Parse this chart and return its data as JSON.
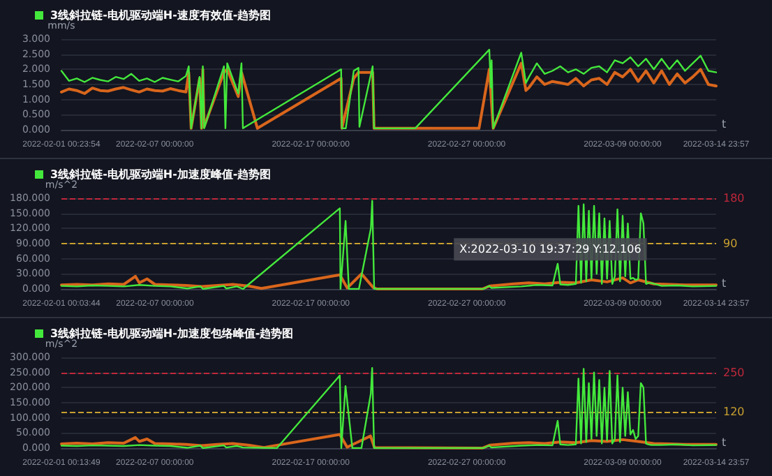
{
  "chart_data": [
    {
      "type": "line",
      "xlabel": "t",
      "ylabel": "mm/s",
      "xlim": [
        "2022-02-01T00:23:54",
        "2022-03-14T23:57"
      ],
      "xticks": [
        {
          "value": "2022-02-01T00:23:54",
          "label": "2022-02-01 00:23:54"
        },
        {
          "value": "2022-02-07T00:00:00",
          "label": "2022-02-07 00:00:00"
        },
        {
          "value": "2022-02-17T00:00:00",
          "label": "2022-02-17 00:00:00"
        },
        {
          "value": "2022-02-27T00:00:00",
          "label": "2022-02-27 00:00:00"
        },
        {
          "value": "2022-03-09T00:00:00",
          "label": "2022-03-09 00:00:00"
        },
        {
          "value": "2022-03-14T23:57",
          "label": "2022-03-14 23:57"
        }
      ],
      "ylim": [
        0,
        3
      ],
      "yticks": [
        {
          "value": 0,
          "label": "0.000"
        },
        {
          "value": 0.5,
          "label": "0.500"
        },
        {
          "value": 1,
          "label": "1.000"
        },
        {
          "value": 1.5,
          "label": "1.500"
        },
        {
          "value": 2,
          "label": "2.000"
        },
        {
          "value": 2.5,
          "label": "2.500"
        },
        {
          "value": 3,
          "label": "3.000"
        }
      ],
      "grid": "y",
      "legend": "top left",
      "marker": "none",
      "line_style": "solid",
      "series": [
        {
          "name": "3线斜拉链-电机驱动端H-速度有效值-趋势图",
          "color": "#44e83c",
          "x": [
            "2022-02-01T00:23:54",
            "2022-02-01T12:00",
            "2022-02-02T00:00",
            "2022-02-02T12:00",
            "2022-02-03T00:00",
            "2022-02-03T12:00",
            "2022-02-04T00:00",
            "2022-02-04T12:00",
            "2022-02-05T00:00",
            "2022-02-05T12:00",
            "2022-02-06T00:00",
            "2022-02-06T12:00",
            "2022-02-07T00:00",
            "2022-02-07T12:00",
            "2022-02-08T00:00",
            "2022-02-08T12:00",
            "2022-02-09T00:00",
            "2022-02-09T04:20",
            "2022-02-09T08:00",
            "2022-02-09T21:00",
            "2022-02-10T00:00",
            "2022-02-10T02:00",
            "2022-02-10T04:00",
            "2022-02-11T10:30",
            "2022-02-11T12:45",
            "2022-02-11T15:30",
            "2022-02-12T08:30",
            "2022-02-12T13:30",
            "2022-02-12T15:40",
            "2022-02-18T22:50",
            "2022-02-19T00:00",
            "2022-02-19T06:00",
            "2022-02-19T18:15",
            "2022-02-20T01:30",
            "2022-02-20T03:00",
            "2022-02-20T23:20",
            "2022-02-21T01:30",
            "2022-02-23T16:50",
            "2022-02-28T10:50",
            "2022-02-28T13:10",
            "2022-02-28T14:25",
            "2022-02-28T16:50",
            "2022-03-02T12:00",
            "2022-03-02T19:10",
            "2022-03-03T00:00",
            "2022-03-03T12:00",
            "2022-03-04T00:00",
            "2022-03-04T12:00",
            "2022-03-05T00:00",
            "2022-03-05T12:00",
            "2022-03-06T00:00",
            "2022-03-06T12:00",
            "2022-03-07T00:00",
            "2022-03-07T12:00",
            "2022-03-08T00:00",
            "2022-03-08T12:00",
            "2022-03-09T00:00",
            "2022-03-09T12:00",
            "2022-03-10T00:00",
            "2022-03-10T12:00",
            "2022-03-11T00:00",
            "2022-03-11T12:00",
            "2022-03-12T00:00",
            "2022-03-12T12:00",
            "2022-03-13T00:00",
            "2022-03-13T12:00",
            "2022-03-14T00:00",
            "2022-03-14T12:00",
            "2022-03-14T23:57"
          ],
          "values": [
            1.95,
            1.62,
            1.7,
            1.58,
            1.72,
            1.65,
            1.6,
            1.75,
            1.68,
            1.85,
            1.62,
            1.7,
            1.58,
            1.72,
            1.66,
            1.6,
            1.78,
            2.1,
            0.05,
            1.75,
            0.05,
            2.1,
            0.05,
            2.1,
            0.05,
            2.2,
            1.2,
            2.2,
            0.05,
            2.0,
            0.05,
            0.05,
            1.95,
            2.05,
            0.1,
            2.1,
            0.05,
            0.05,
            2.65,
            1.4,
            2.3,
            0.05,
            2.55,
            1.55,
            1.75,
            2.2,
            1.85,
            1.95,
            2.1,
            1.9,
            2.0,
            1.85,
            2.05,
            2.1,
            1.9,
            2.3,
            2.2,
            2.4,
            2.1,
            2.35,
            2.0,
            2.35,
            2.0,
            2.3,
            1.95,
            2.2,
            2.45,
            1.95,
            1.9
          ]
        },
        {
          "color": "#d9661c",
          "x": [
            "2022-02-01T00:23:54",
            "2022-02-01T12:00",
            "2022-02-02T00:00",
            "2022-02-02T12:00",
            "2022-02-03T00:00",
            "2022-02-03T12:00",
            "2022-02-04T00:00",
            "2022-02-04T12:00",
            "2022-02-05T00:00",
            "2022-02-05T12:00",
            "2022-02-06T00:00",
            "2022-02-06T12:00",
            "2022-02-07T00:00",
            "2022-02-07T12:00",
            "2022-02-08T00:00",
            "2022-02-08T12:00",
            "2022-02-09T00:00",
            "2022-02-09T04:20",
            "2022-02-09T08:00",
            "2022-02-09T21:00",
            "2022-02-10T00:00",
            "2022-02-10T02:00",
            "2022-02-10T04:00",
            "2022-02-11T10:30",
            "2022-02-11T15:30",
            "2022-02-12T08:30",
            "2022-02-12T13:30",
            "2022-02-13T14:00",
            "2022-02-18T22:50",
            "2022-02-19T00:00",
            "2022-02-19T18:15",
            "2022-02-20T01:30",
            "2022-02-20T23:20",
            "2022-02-21T01:30",
            "2022-02-27T19:00",
            "2022-02-28T10:50",
            "2022-02-28T16:50",
            "2022-03-02T12:00",
            "2022-03-02T19:10",
            "2022-03-03T00:00",
            "2022-03-03T12:00",
            "2022-03-04T00:00",
            "2022-03-04T12:00",
            "2022-03-05T00:00",
            "2022-03-05T12:00",
            "2022-03-06T00:00",
            "2022-03-06T12:00",
            "2022-03-07T00:00",
            "2022-03-07T12:00",
            "2022-03-08T00:00",
            "2022-03-08T12:00",
            "2022-03-09T00:00",
            "2022-03-09T12:00",
            "2022-03-10T00:00",
            "2022-03-10T12:00",
            "2022-03-11T00:00",
            "2022-03-11T12:00",
            "2022-03-12T00:00",
            "2022-03-12T12:00",
            "2022-03-13T00:00",
            "2022-03-13T12:00",
            "2022-03-14T00:00",
            "2022-03-14T12:00",
            "2022-03-14T23:57"
          ],
          "values": [
            1.25,
            1.35,
            1.3,
            1.2,
            1.38,
            1.3,
            1.28,
            1.35,
            1.4,
            1.32,
            1.25,
            1.35,
            1.3,
            1.28,
            1.36,
            1.3,
            1.25,
            1.9,
            0.05,
            1.7,
            0.05,
            2.0,
            0.1,
            1.9,
            2.0,
            1.1,
            1.9,
            0.05,
            1.7,
            0.05,
            1.7,
            1.9,
            1.9,
            0.05,
            0.05,
            2.0,
            0.05,
            2.2,
            1.3,
            1.4,
            1.75,
            1.5,
            1.6,
            1.55,
            1.5,
            1.7,
            1.45,
            1.65,
            1.7,
            1.5,
            1.9,
            1.75,
            2.0,
            1.6,
            1.95,
            1.55,
            1.95,
            1.5,
            1.85,
            1.55,
            1.75,
            2.0,
            1.5,
            1.45
          ]
        }
      ]
    },
    {
      "type": "line",
      "xlabel": "t",
      "ylabel": "m/s^2",
      "xlim": [
        "2022-02-01T00:03:44",
        "2022-03-14T23:57"
      ],
      "xticks": [
        {
          "value": "2022-02-01T00:03:44",
          "label": "2022-02-01 00:03:44"
        },
        {
          "value": "2022-02-07T00:00:00",
          "label": "2022-02-07 00:00:00"
        },
        {
          "value": "2022-02-17T00:00:00",
          "label": "2022-02-17 00:00:00"
        },
        {
          "value": "2022-02-27T00:00:00",
          "label": "2022-02-27 00:00:00"
        },
        {
          "value": "2022-03-09T00:00:00",
          "label": "2022-03-09 00:00:00"
        },
        {
          "value": "2022-03-14T23:57",
          "label": "2022-03-14 23:57"
        }
      ],
      "ylim": [
        0,
        180
      ],
      "yticks": [
        {
          "value": 0,
          "label": "0.000"
        },
        {
          "value": 30,
          "label": "30.000"
        },
        {
          "value": 60,
          "label": "60.000"
        },
        {
          "value": 90,
          "label": "90.000"
        },
        {
          "value": 120,
          "label": "120.000"
        },
        {
          "value": 150,
          "label": "150.000"
        },
        {
          "value": 180,
          "label": "180.000"
        }
      ],
      "grid": "y",
      "legend": "top left",
      "marker": "none",
      "line_style": "solid",
      "ref_lines": [
        {
          "axis": "y",
          "value": 180,
          "label": "180",
          "color": "#c0283c",
          "line_style": "dashed"
        },
        {
          "axis": "y",
          "value": 90,
          "label": "90",
          "color": "#c8a030",
          "line_style": "dashed"
        }
      ],
      "annotations": [
        {
          "text": "X:2022-03-10 19:37:29 Y:12.106",
          "x": "2022-03-10T19:37:29",
          "y": 12.106
        }
      ],
      "series": [
        {
          "name": "3线斜拉链-电机驱动端H-加速度峰值-趋势图",
          "color": "#44e83c",
          "x": [
            "2022-02-01T00:03:44",
            "2022-02-02T00:00",
            "2022-02-03T00:00",
            "2022-02-04T00:00",
            "2022-02-05T00:00",
            "2022-02-06T00:00",
            "2022-02-07T00:00",
            "2022-02-08T00:00",
            "2022-02-09T02:00",
            "2022-02-09T22:00",
            "2022-02-10T02:00",
            "2022-02-11T10:00",
            "2022-02-11T14:00",
            "2022-02-12T06:00",
            "2022-02-12T15:40",
            "2022-02-18T20:40",
            "2022-02-18T21:40",
            "2022-02-19T05:30",
            "2022-02-19T10:30",
            "2022-02-20T02:00",
            "2022-02-20T20:25",
            "2022-02-20T22:30",
            "2022-02-21T01:30",
            "2022-02-28T02:00",
            "2022-02-28T10:00",
            "2022-02-28T14:00",
            "2022-03-02T12:00",
            "2022-03-03T12:00",
            "2022-03-04T12:00",
            "2022-03-04T20:00",
            "2022-03-05T00:00",
            "2022-03-05T12:00",
            "2022-03-06T00:00",
            "2022-03-06T04:00",
            "2022-03-06T08:00",
            "2022-03-06T12:00",
            "2022-03-06T16:00",
            "2022-03-06T20:00",
            "2022-03-07T00:00",
            "2022-03-07T04:00",
            "2022-03-07T08:00",
            "2022-03-07T12:00",
            "2022-03-07T16:00",
            "2022-03-07T20:00",
            "2022-03-08T00:00",
            "2022-03-08T04:00",
            "2022-03-08T08:00",
            "2022-03-08T12:00",
            "2022-03-08T16:00",
            "2022-03-08T20:00",
            "2022-03-09T00:00",
            "2022-03-09T04:00",
            "2022-03-09T08:00",
            "2022-03-09T12:00",
            "2022-03-09T16:00",
            "2022-03-09T20:00",
            "2022-03-10T00:00",
            "2022-03-10T04:00",
            "2022-03-10T08:00",
            "2022-03-10T12:00",
            "2022-03-10T16:00",
            "2022-03-10T19:37:29",
            "2022-03-11T12:00",
            "2022-03-12T12:00",
            "2022-03-13T12:00",
            "2022-03-14T23:57"
          ],
          "values": [
            6,
            5,
            7,
            6,
            5,
            8,
            6,
            5,
            1,
            5,
            0,
            6,
            1,
            5,
            0,
            160,
            0,
            135,
            0,
            0,
            120,
            175,
            0,
            0,
            6,
            2,
            5,
            8,
            7,
            50,
            9,
            8,
            10,
            165,
            12,
            168,
            15,
            155,
            20,
            165,
            30,
            150,
            10,
            140,
            20,
            135,
            10,
            25,
            158,
            15,
            145,
            25,
            130,
            20,
            22,
            18,
            20,
            150,
            130,
            10,
            12,
            12,
            6,
            7,
            5,
            6
          ]
        },
        {
          "color": "#d9661c",
          "x": [
            "2022-02-01T00:03:44",
            "2022-02-02T00:00",
            "2022-02-03T00:00",
            "2022-02-04T00:00",
            "2022-02-05T00:00",
            "2022-02-05T18:00",
            "2022-02-06T00:00",
            "2022-02-06T12:00",
            "2022-02-07T00:00",
            "2022-02-08T00:00",
            "2022-02-09T00:00",
            "2022-02-10T00:00",
            "2022-02-11T00:00",
            "2022-02-12T00:00",
            "2022-02-13T00:00",
            "2022-02-13T20:00",
            "2022-02-18T20:40",
            "2022-02-19T08:00",
            "2022-02-20T06:00",
            "2022-02-21T00:00",
            "2022-02-21T06:00",
            "2022-02-28T00:00",
            "2022-02-28T12:00",
            "2022-03-02T00:00",
            "2022-03-03T00:00",
            "2022-03-04T00:00",
            "2022-03-05T00:00",
            "2022-03-06T00:00",
            "2022-03-07T00:00",
            "2022-03-08T00:00",
            "2022-03-09T00:00",
            "2022-03-09T12:00",
            "2022-03-10T00:00",
            "2022-03-11T00:00",
            "2022-03-12T00:00",
            "2022-03-13T00:00",
            "2022-03-14T23:57"
          ],
          "values": [
            8,
            9,
            8,
            10,
            9,
            25,
            12,
            20,
            9,
            8,
            7,
            5,
            7,
            9,
            6,
            1,
            28,
            2,
            30,
            3,
            0,
            0,
            6,
            10,
            12,
            10,
            13,
            12,
            18,
            14,
            22,
            12,
            18,
            10,
            9,
            8,
            8
          ]
        }
      ]
    },
    {
      "type": "line",
      "xlabel": "t",
      "ylabel": "m/s^2",
      "xlim": [
        "2022-02-01T00:13:49",
        "2022-03-14T23:57"
      ],
      "xticks": [
        {
          "value": "2022-02-01T00:13:49",
          "label": "2022-02-01 00:13:49"
        },
        {
          "value": "2022-02-07T00:00:00",
          "label": "2022-02-07 00:00:00"
        },
        {
          "value": "2022-02-17T00:00:00",
          "label": "2022-02-17 00:00:00"
        },
        {
          "value": "2022-02-27T00:00:00",
          "label": "2022-02-27 00:00:00"
        },
        {
          "value": "2022-03-09T00:00:00",
          "label": "2022-03-09 00:00:00"
        },
        {
          "value": "2022-03-14T23:57",
          "label": "2022-03-14 23:57"
        }
      ],
      "ylim": [
        0,
        300
      ],
      "yticks": [
        {
          "value": 0,
          "label": "0.000"
        },
        {
          "value": 50,
          "label": "50.000"
        },
        {
          "value": 100,
          "label": "100.000"
        },
        {
          "value": 150,
          "label": "150.000"
        },
        {
          "value": 200,
          "label": "200.000"
        },
        {
          "value": 250,
          "label": "250.000"
        },
        {
          "value": 300,
          "label": "300.000"
        }
      ],
      "grid": "y",
      "legend": "top left",
      "marker": "none",
      "line_style": "solid",
      "ref_lines": [
        {
          "axis": "y",
          "value": 250,
          "label": "250",
          "color": "#c0283c",
          "line_style": "dashed"
        },
        {
          "axis": "y",
          "value": 120,
          "label": "120",
          "color": "#c8a030",
          "line_style": "dashed"
        }
      ],
      "series": [
        {
          "name": "3线斜拉链-电机驱动端H-加速度包络峰值-趋势图",
          "color": "#44e83c",
          "x": [
            "2022-02-01T00:13:49",
            "2022-02-02T00:00",
            "2022-02-03T00:00",
            "2022-02-04T00:00",
            "2022-02-05T00:00",
            "2022-02-06T00:00",
            "2022-02-07T00:00",
            "2022-02-08T00:00",
            "2022-02-09T02:00",
            "2022-02-09T22:00",
            "2022-02-10T02:00",
            "2022-02-11T10:00",
            "2022-02-11T14:00",
            "2022-02-12T06:00",
            "2022-02-12T15:40",
            "2022-02-14T19:50",
            "2022-02-18T20:40",
            "2022-02-18T23:00",
            "2022-02-19T05:30",
            "2022-02-19T16:00",
            "2022-02-20T06:00",
            "2022-02-20T20:25",
            "2022-02-20T22:30",
            "2022-02-21T01:30",
            "2022-02-28T02:00",
            "2022-02-28T10:00",
            "2022-02-28T14:00",
            "2022-03-02T12:00",
            "2022-03-03T12:00",
            "2022-03-04T12:00",
            "2022-03-04T20:00",
            "2022-03-05T00:00",
            "2022-03-05T12:00",
            "2022-03-06T00:00",
            "2022-03-06T04:00",
            "2022-03-06T08:00",
            "2022-03-06T12:00",
            "2022-03-06T16:00",
            "2022-03-06T20:00",
            "2022-03-07T00:00",
            "2022-03-07T04:00",
            "2022-03-07T08:00",
            "2022-03-07T12:00",
            "2022-03-07T16:00",
            "2022-03-07T20:00",
            "2022-03-08T00:00",
            "2022-03-08T04:00",
            "2022-03-08T08:00",
            "2022-03-08T12:00",
            "2022-03-08T16:00",
            "2022-03-08T20:00",
            "2022-03-09T00:00",
            "2022-03-09T04:00",
            "2022-03-09T08:00",
            "2022-03-09T12:00",
            "2022-03-09T16:00",
            "2022-03-09T20:00",
            "2022-03-10T00:00",
            "2022-03-10T04:00",
            "2022-03-10T08:00",
            "2022-03-10T12:00",
            "2022-03-10T16:00",
            "2022-03-10T20:00",
            "2022-03-11T12:00",
            "2022-03-12T12:00",
            "2022-03-13T12:00",
            "2022-03-14T23:57"
          ],
          "values": [
            8,
            7,
            9,
            8,
            7,
            10,
            8,
            7,
            1,
            8,
            0,
            9,
            2,
            7,
            2,
            0,
            240,
            0,
            205,
            0,
            0,
            180,
            265,
            0,
            0,
            8,
            2,
            8,
            10,
            9,
            90,
            12,
            10,
            12,
            230,
            15,
            262,
            20,
            215,
            30,
            250,
            40,
            225,
            15,
            200,
            25,
            255,
            15,
            30,
            240,
            20,
            200,
            40,
            185,
            45,
            60,
            30,
            40,
            215,
            200,
            15,
            12,
            10,
            10,
            12,
            9,
            10
          ]
        },
        {
          "color": "#d9661c",
          "x": [
            "2022-02-01T00:13:49",
            "2022-02-02T00:00",
            "2022-02-03T00:00",
            "2022-02-04T00:00",
            "2022-02-05T00:00",
            "2022-02-05T18:00",
            "2022-02-06T00:00",
            "2022-02-06T12:00",
            "2022-02-07T00:00",
            "2022-02-08T00:00",
            "2022-02-09T00:00",
            "2022-02-10T00:00",
            "2022-02-11T00:00",
            "2022-02-12T00:00",
            "2022-02-13T00:00",
            "2022-02-14T00:00",
            "2022-02-18T20:40",
            "2022-02-19T08:00",
            "2022-02-20T20:00",
            "2022-02-21T02:00",
            "2022-02-28T00:00",
            "2022-02-28T12:00",
            "2022-03-02T00:00",
            "2022-03-03T00:00",
            "2022-03-04T00:00",
            "2022-03-05T00:00",
            "2022-03-06T00:00",
            "2022-03-07T00:00",
            "2022-03-08T00:00",
            "2022-03-09T00:00",
            "2022-03-10T00:00",
            "2022-03-11T00:00",
            "2022-03-12T00:00",
            "2022-03-13T00:00",
            "2022-03-14T23:57"
          ],
          "values": [
            14,
            16,
            14,
            18,
            16,
            35,
            22,
            30,
            15,
            14,
            12,
            8,
            12,
            15,
            10,
            2,
            45,
            3,
            40,
            2,
            0,
            10,
            16,
            18,
            15,
            20,
            18,
            25,
            22,
            28,
            22,
            15,
            14,
            12,
            12
          ]
        }
      ]
    }
  ]
}
